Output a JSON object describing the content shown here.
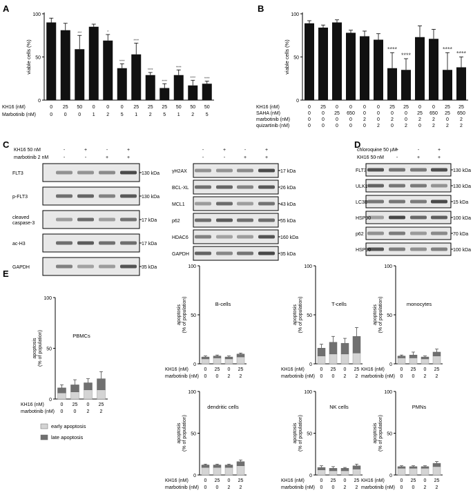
{
  "panels": {
    "A": {
      "letter": "A",
      "ylabel": "viable cells (%)"
    },
    "B": {
      "letter": "B",
      "ylabel": "viable cells (%)"
    },
    "C": {
      "letter": "C"
    },
    "D": {
      "letter": "D"
    },
    "E": {
      "letter": "E"
    }
  },
  "chart_data": [
    {
      "id": "A",
      "type": "bar",
      "ylabel": "viable cells (%)",
      "ylim": [
        0,
        100
      ],
      "yticks": [
        0,
        50,
        100
      ],
      "values": [
        90,
        81,
        59,
        85,
        69,
        37,
        53,
        29,
        14,
        29,
        17,
        19
      ],
      "errors": [
        5,
        8,
        16,
        3,
        7,
        5,
        13,
        3,
        5,
        6,
        6,
        3
      ],
      "significance": [
        "",
        "",
        "***",
        "",
        "*",
        "****",
        "****",
        "****",
        "****",
        "****",
        "****",
        "****"
      ],
      "conditions": [
        {
          "label": "KH16 (nM)",
          "values": [
            "0",
            "25",
            "50",
            "0",
            "0",
            "0",
            "25",
            "25",
            "25",
            "50",
            "50",
            "50"
          ]
        },
        {
          "label": "Marbotinib (nM)",
          "values": [
            "0",
            "0",
            "0",
            "1",
            "2",
            "5",
            "1",
            "2",
            "5",
            "1",
            "2",
            "5"
          ]
        }
      ]
    },
    {
      "id": "B",
      "type": "bar",
      "ylabel": "viable cells (%)",
      "ylim": [
        0,
        100
      ],
      "yticks": [
        0,
        50,
        100
      ],
      "values": [
        89,
        84,
        90,
        78,
        74,
        70,
        37,
        35,
        73,
        71,
        35,
        38
      ],
      "errors": [
        3,
        3,
        3,
        3,
        6,
        7,
        18,
        13,
        13,
        11,
        20,
        12
      ],
      "significance": [
        "",
        "",
        "",
        "",
        "",
        "",
        "****",
        "****",
        "",
        "",
        "****",
        "****"
      ],
      "conditions": [
        {
          "label": "KH16 (nM)",
          "values": [
            "0",
            "25",
            "0",
            "0",
            "0",
            "0",
            "25",
            "25",
            "0",
            "0",
            "25",
            "25"
          ]
        },
        {
          "label": "SAHA (nM)",
          "values": [
            "0",
            "0",
            "25",
            "650",
            "0",
            "0",
            "0",
            "0",
            "25",
            "650",
            "25",
            "650"
          ]
        },
        {
          "label": "marbotinib (nM)",
          "values": [
            "0",
            "0",
            "0",
            "0",
            "2",
            "0",
            "2",
            "0",
            "2",
            "2",
            "0",
            "2"
          ]
        },
        {
          "label": "quizartinib (nM)",
          "values": [
            "0",
            "0",
            "0",
            "0",
            "0",
            "2",
            "0",
            "2",
            "0",
            "2",
            "2",
            "2"
          ]
        }
      ]
    },
    {
      "id": "E-PBMCs",
      "type": "bar",
      "stacked": true,
      "title": "PBMCs",
      "ylabel": "apoptosis (% of population)",
      "ylim": [
        0,
        100
      ],
      "yticks": [
        0,
        50,
        100
      ],
      "categories_kh16": [
        "0",
        "25",
        "0",
        "25"
      ],
      "categories_marbotinib": [
        "0",
        "0",
        "2",
        "2"
      ],
      "series": [
        {
          "name": "early apoptosis",
          "values": [
            6,
            7,
            9,
            9
          ]
        },
        {
          "name": "late apoptosis",
          "values": [
            5,
            7,
            7,
            11
          ]
        }
      ],
      "errors": [
        3,
        5,
        4,
        7
      ]
    },
    {
      "id": "E-B",
      "type": "bar",
      "stacked": true,
      "title": "B-cells",
      "ylabel": "apoptosis (% of population)",
      "ylim": [
        0,
        100
      ],
      "yticks": [
        0,
        50,
        100
      ],
      "categories_kh16": [
        "0",
        "25",
        "0",
        "25"
      ],
      "categories_marbotinib": [
        "0",
        "0",
        "2",
        "2"
      ],
      "series": [
        {
          "name": "early apoptosis",
          "values": [
            5,
            6,
            5,
            7
          ]
        },
        {
          "name": "late apoptosis",
          "values": [
            2,
            2,
            2,
            3
          ]
        }
      ],
      "errors": [
        1,
        1,
        1,
        1
      ]
    },
    {
      "id": "E-T",
      "type": "bar",
      "stacked": true,
      "title": "T-cells",
      "ylabel": "apoptosis (% of population)",
      "ylim": [
        0,
        100
      ],
      "yticks": [
        0,
        50,
        100
      ],
      "categories_kh16": [
        "0",
        "25",
        "0",
        "25"
      ],
      "categories_marbotinib": [
        "0",
        "0",
        "2",
        "2"
      ],
      "series": [
        {
          "name": "early apoptosis",
          "values": [
            8,
            10,
            10,
            11
          ]
        },
        {
          "name": "late apoptosis",
          "values": [
            8,
            12,
            11,
            17
          ]
        }
      ],
      "errors": [
        4,
        6,
        5,
        9
      ]
    },
    {
      "id": "E-mono",
      "type": "bar",
      "stacked": true,
      "title": "monocytes",
      "ylabel": "apoptosis (% of population)",
      "ylim": [
        0,
        100
      ],
      "yticks": [
        0,
        50,
        100
      ],
      "categories_kh16": [
        "0",
        "25",
        "0",
        "25"
      ],
      "categories_marbotinib": [
        "0",
        "0",
        "2",
        "2"
      ],
      "series": [
        {
          "name": "early apoptosis",
          "values": [
            6,
            6,
            5,
            8
          ]
        },
        {
          "name": "late apoptosis",
          "values": [
            2,
            3,
            2,
            4
          ]
        }
      ],
      "errors": [
        1,
        3,
        1,
        3
      ]
    },
    {
      "id": "E-dc",
      "type": "bar",
      "stacked": true,
      "title": "dendritic cells",
      "ylabel": "apoptosis (% of population)",
      "ylim": [
        0,
        100
      ],
      "yticks": [
        0,
        50,
        100
      ],
      "categories_kh16": [
        "0",
        "25",
        "0",
        "25"
      ],
      "categories_marbotinib": [
        "0",
        "0",
        "2",
        "2"
      ],
      "series": [
        {
          "name": "early apoptosis",
          "values": [
            9,
            9,
            9,
            11
          ]
        },
        {
          "name": "late apoptosis",
          "values": [
            3,
            3,
            3,
            5
          ]
        }
      ],
      "errors": [
        1,
        1,
        1,
        2
      ]
    },
    {
      "id": "E-nk",
      "type": "bar",
      "stacked": true,
      "title": "NK cells",
      "ylabel": "apoptosis (% of population)",
      "ylim": [
        0,
        100
      ],
      "yticks": [
        0,
        50,
        100
      ],
      "categories_kh16": [
        "0",
        "25",
        "0",
        "25"
      ],
      "categories_marbotinib": [
        "0",
        "0",
        "2",
        "2"
      ],
      "series": [
        {
          "name": "early apoptosis",
          "values": [
            6,
            5,
            5,
            7
          ]
        },
        {
          "name": "late apoptosis",
          "values": [
            3,
            3,
            3,
            4
          ]
        }
      ],
      "errors": [
        2,
        2,
        1,
        2
      ]
    },
    {
      "id": "E-pmn",
      "type": "bar",
      "stacked": true,
      "title": "PMNs",
      "ylabel": "apoptosis (% of population)",
      "ylim": [
        0,
        100
      ],
      "yticks": [
        0,
        50,
        100
      ],
      "categories_kh16": [
        "0",
        "25",
        "0",
        "25"
      ],
      "categories_marbotinib": [
        "0",
        "0",
        "2",
        "2"
      ],
      "series": [
        {
          "name": "early apoptosis",
          "values": [
            8,
            8,
            8,
            10
          ]
        },
        {
          "name": "late apoptosis",
          "values": [
            2,
            2,
            2,
            4
          ]
        }
      ],
      "errors": [
        1,
        1,
        1,
        2
      ]
    }
  ],
  "legend_E": [
    {
      "name": "early apoptosis",
      "color": "#d4d4d4"
    },
    {
      "name": "late apoptosis",
      "color": "#707070"
    }
  ],
  "colors": {
    "bar": "#111111",
    "early": "#d4d4d4",
    "late": "#707070",
    "axis": "#000000"
  },
  "E_axis_labels": {
    "kh16": "KH16 (nM)",
    "marbotinib": "marbotinib (nM)"
  },
  "blots": {
    "C1": {
      "header": [
        {
          "label": "KH16 50 nM",
          "marks": [
            "-",
            "+",
            "-",
            "+"
          ]
        },
        {
          "label": "marbotinib 2 nM",
          "marks": [
            "-",
            "-",
            "+",
            "+"
          ]
        }
      ],
      "rows": [
        {
          "name": "FLT3",
          "kda": "130 kDa"
        },
        {
          "name": "p-FLT3",
          "kda": "130 kDa"
        },
        {
          "name": "cleaved\ncaspase-3",
          "kda": "17 kDa"
        },
        {
          "name": "ac-H3",
          "kda": "17 kDa"
        },
        {
          "name": "GAPDH",
          "kda": "35 kDa"
        }
      ]
    },
    "C2": {
      "header": [
        {
          "marks": [
            "-",
            "+",
            "-",
            "+"
          ]
        },
        {
          "marks": [
            "-",
            "-",
            "+",
            "+"
          ]
        }
      ],
      "rows": [
        {
          "name": "γH2AX",
          "kda": "17 kDa"
        },
        {
          "name": "BCL-XL",
          "kda": "26 kDa"
        },
        {
          "name": "MCL1",
          "kda": "43 kDa"
        },
        {
          "name": "p62",
          "kda": "55 kDa"
        },
        {
          "name": "HDAC6",
          "kda": "160 kDa"
        },
        {
          "name": "GAPDH",
          "kda": "35 kDa"
        }
      ]
    },
    "D": {
      "header": [
        {
          "label": "chloroquine 50 µM",
          "marks": [
            "-",
            "+",
            "-",
            "+"
          ]
        },
        {
          "label": "KH16 50 nM",
          "marks": [
            "-",
            "-",
            "+",
            "+"
          ]
        }
      ],
      "rows": [
        {
          "name": "FLT3",
          "kda": "130 kDa"
        },
        {
          "name": "ULK1",
          "kda": "130 kDa"
        },
        {
          "name": "LC3B",
          "kda": "15 kDa"
        },
        {
          "name": "HSP90",
          "kda": "100 kDa"
        },
        {
          "name": "p62",
          "kda": "70 kDa"
        },
        {
          "name": "HSP90",
          "kda": "100 kDa"
        }
      ]
    }
  }
}
